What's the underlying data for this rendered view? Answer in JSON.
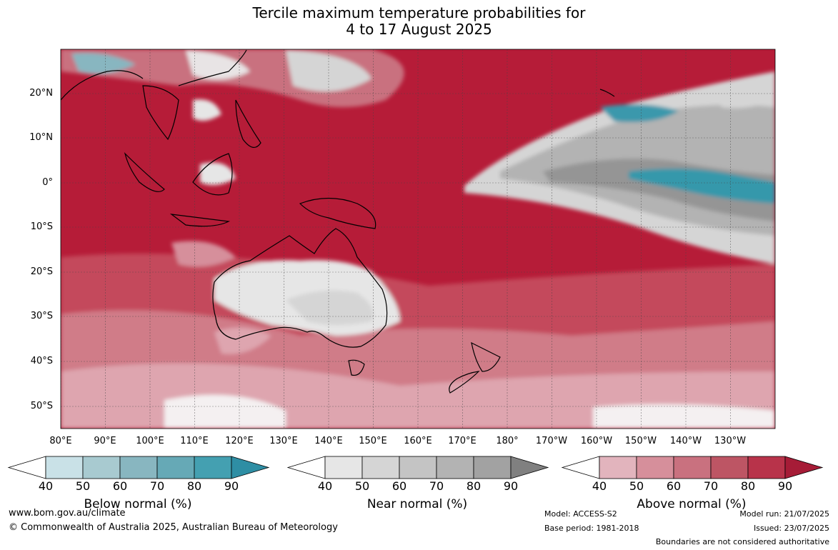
{
  "title": {
    "line1": "Tercile maximum temperature probabilities for",
    "line2": "4 to 17 August 2025"
  },
  "lat_labels": [
    "20°N",
    "10°N",
    "0°",
    "10°S",
    "20°S",
    "30°S",
    "40°S",
    "50°S"
  ],
  "lon_labels": [
    "80°E",
    "90°E",
    "100°E",
    "110°E",
    "120°E",
    "130°E",
    "140°E",
    "150°E",
    "160°E",
    "170°E",
    "180°",
    "170°W",
    "160°W",
    "150°W",
    "140°W",
    "130°W"
  ],
  "colorbars": [
    {
      "title": "Below normal (%)",
      "ticks": [
        "40",
        "50",
        "60",
        "70",
        "80",
        "90"
      ],
      "colors": [
        "#ffffff",
        "#c9e1e7",
        "#a8cad0",
        "#88b6c0",
        "#66a9b6",
        "#44a0b1",
        "#2e8ea4"
      ]
    },
    {
      "title": "Near normal (%)",
      "ticks": [
        "40",
        "50",
        "60",
        "70",
        "80",
        "90"
      ],
      "colors": [
        "#ffffff",
        "#e6e6e6",
        "#d5d5d5",
        "#c4c4c4",
        "#b3b3b3",
        "#a2a2a2",
        "#808080"
      ]
    },
    {
      "title": "Above normal (%)",
      "ticks": [
        "40",
        "50",
        "60",
        "70",
        "80",
        "90"
      ],
      "colors": [
        "#ffffff",
        "#e2b4bd",
        "#d68f9b",
        "#c9717f",
        "#bd5564",
        "#b8334a",
        "#a61c37"
      ]
    }
  ],
  "footer": {
    "website": "www.bom.gov.au/climate",
    "copyright": "© Commonwealth of Australia 2025, Australian Bureau of Meteorology",
    "model": "Model: ACCESS-S2",
    "base_period": "Base period: 1981-2018",
    "model_run": "Model run: 21/07/2025",
    "issued": "Issued: 23/07/2025",
    "disclaimer": "Boundaries are not considered authoritative"
  }
}
